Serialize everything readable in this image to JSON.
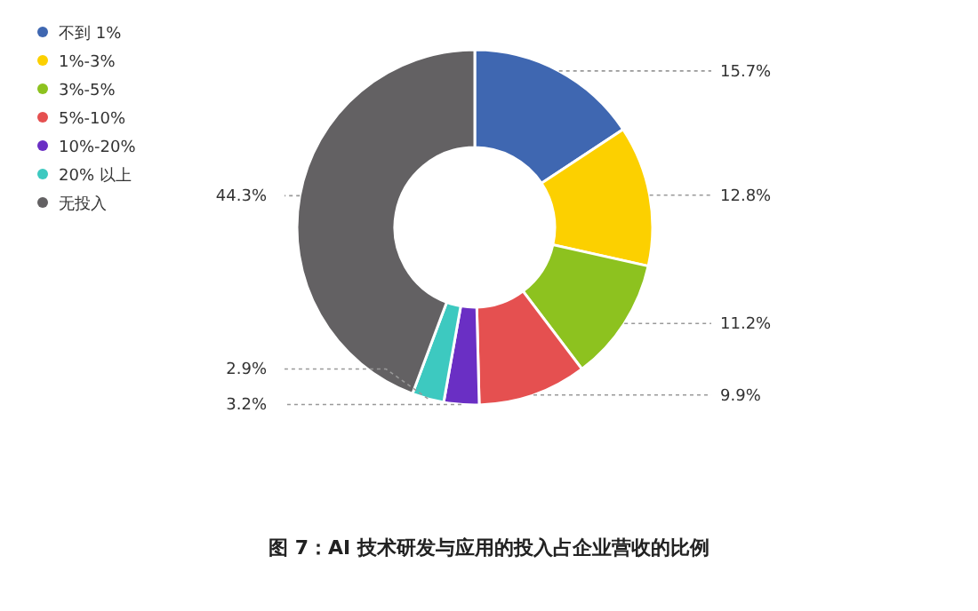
{
  "chart_data": {
    "type": "donut",
    "title": "图 7：AI 技术研发与应用的投入占企业营收的比例",
    "categories": [
      "不到 1%",
      "1%-3%",
      "3%-5%",
      "5%-10%",
      "10%-20%",
      "20% 以上",
      "无投入"
    ],
    "values": [
      15.7,
      12.8,
      11.2,
      9.9,
      3.2,
      2.9,
      44.3
    ],
    "colors": [
      "#3f67b1",
      "#fcd000",
      "#8dc21f",
      "#e55050",
      "#6a2fc4",
      "#3dc9c0",
      "#636163"
    ],
    "value_labels": [
      "15.7%",
      "12.8%",
      "11.2%",
      "9.9%",
      "3.2%",
      "2.9%",
      "44.3%"
    ],
    "legend": "top left"
  }
}
